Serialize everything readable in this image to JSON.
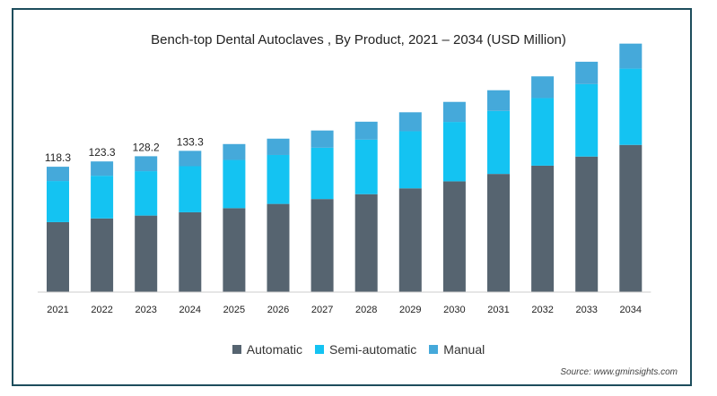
{
  "chart_data": {
    "type": "bar",
    "stacked": true,
    "title": "Bench-top Dental Autoclaves , By Product, 2021 – 2034 (USD Million)",
    "categories": [
      "2021",
      "2022",
      "2023",
      "2024",
      "2025",
      "2026",
      "2027",
      "2028",
      "2029",
      "2030",
      "2031",
      "2032",
      "2033",
      "2034"
    ],
    "series": [
      {
        "name": "Automatic",
        "color": "#566470",
        "values": [
          66.0,
          69.5,
          72.2,
          75.3,
          79.2,
          83.2,
          87.8,
          92.4,
          97.9,
          104.5,
          111.5,
          119.3,
          127.9,
          138.9
        ]
      },
      {
        "name": "Semi-automatic",
        "color": "#14c3f2",
        "values": [
          38.8,
          40.3,
          41.9,
          43.5,
          45.5,
          46.2,
          48.5,
          51.5,
          53.9,
          56.1,
          59.5,
          63.8,
          68.4,
          72.0
        ]
      },
      {
        "name": "Manual",
        "color": "#45a9da",
        "values": [
          13.5,
          13.5,
          14.1,
          14.5,
          15.0,
          15.4,
          16.2,
          16.9,
          17.9,
          18.9,
          19.5,
          20.5,
          21.1,
          23.6
        ]
      }
    ],
    "data_labels": [
      "118.3",
      "123.3",
      "128.2",
      "133.3"
    ],
    "ylim": [
      0,
      230
    ],
    "grid": false,
    "legend_position": "bottom"
  },
  "source": "Source: www.gminsights.com"
}
